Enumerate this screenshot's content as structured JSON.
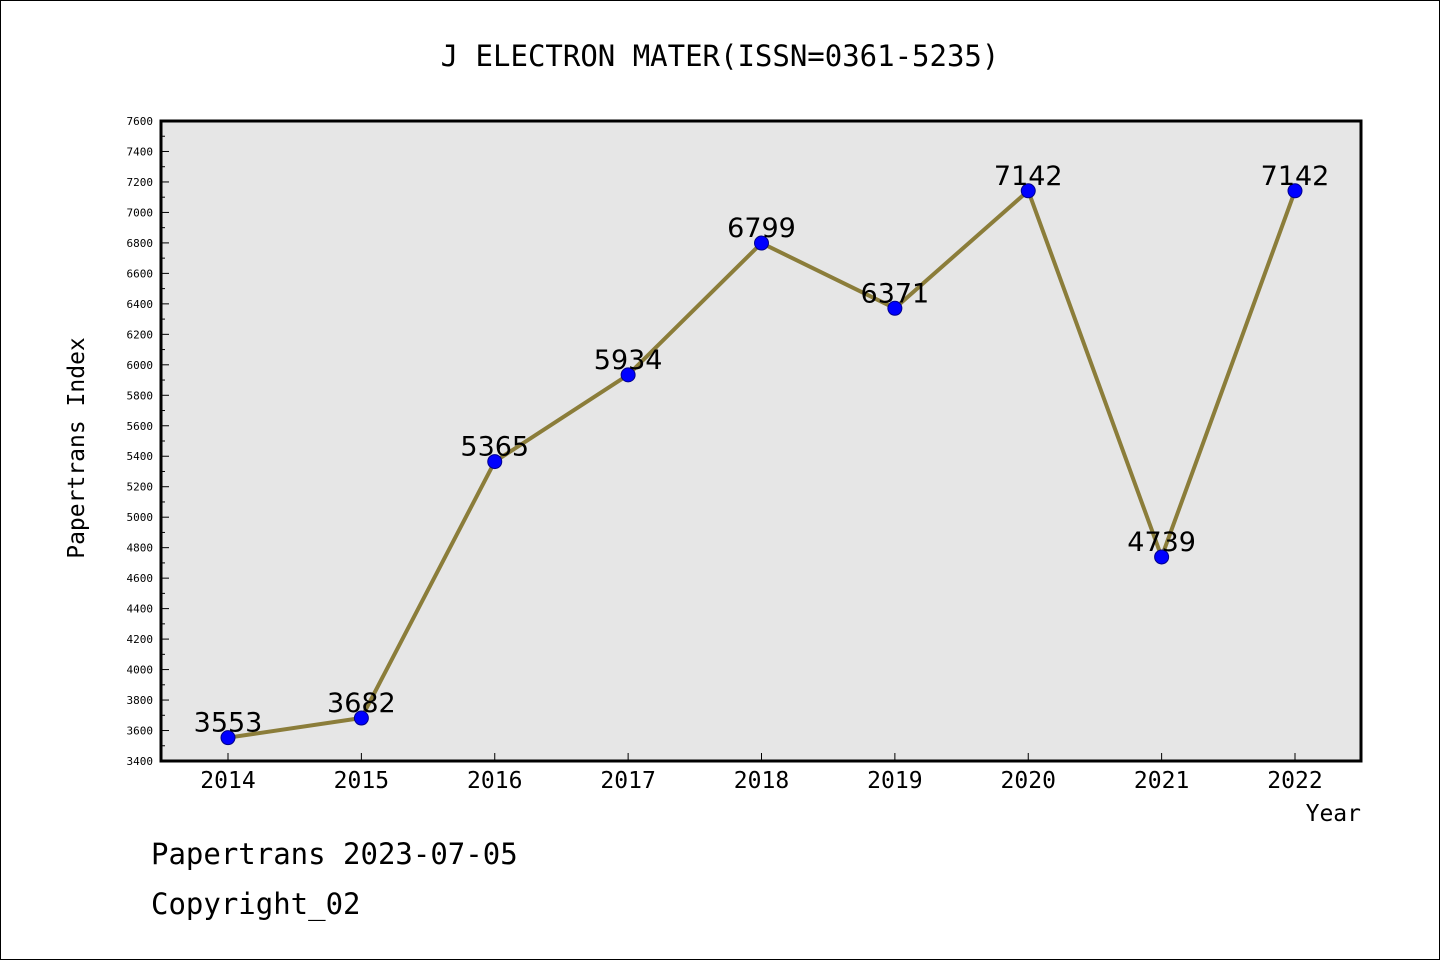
{
  "chart_data": {
    "type": "line",
    "title": "J ELECTRON MATER(ISSN=0361-5235)",
    "xlabel": "Year",
    "ylabel": "Papertrans Index",
    "categories": [
      "2014",
      "2015",
      "2016",
      "2017",
      "2018",
      "2019",
      "2020",
      "2021",
      "2022"
    ],
    "series": [
      {
        "values": [
          3553,
          3682,
          5365,
          5934,
          6799,
          6371,
          7142,
          4739,
          7142
        ]
      }
    ],
    "ylim": [
      3400,
      7600
    ],
    "yticks": [
      3400,
      3600,
      3800,
      4000,
      4200,
      4400,
      4600,
      4800,
      5000,
      5200,
      5400,
      5600,
      5800,
      6000,
      6200,
      6400,
      6600,
      6800,
      7000,
      7200,
      7400,
      7600
    ],
    "line_color": "#8b7d3a",
    "marker_color": "#0000ff",
    "plot_bg": "#e6e6e6",
    "grid": false,
    "data_labels": true
  },
  "footer": {
    "line1": "Papertrans 2023-07-05",
    "line2": "Copyright_02"
  }
}
